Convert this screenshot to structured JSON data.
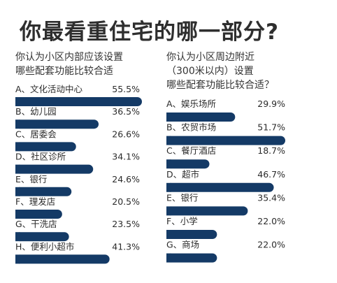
{
  "title": "你最看重住宅的哪一部分?",
  "chart_data": [
    {
      "type": "bar",
      "header": [
        "你认为小区内部应该设置",
        "哪些配套功能比较合适"
      ],
      "categories": [
        "A、文化活动中心",
        "B、幼儿园",
        "C、居委会",
        "D、社区诊所",
        "E、银行",
        "F、理发店",
        "G、干洗店",
        "H、便利小超市"
      ],
      "values": [
        55.5,
        36.5,
        26.6,
        34.1,
        24.6,
        20.5,
        23.5,
        41.3
      ],
      "value_labels": [
        "55.5%",
        "36.5%",
        "26.6%",
        "34.1%",
        "24.6%",
        "20.5%",
        "23.5%",
        "41.3%"
      ],
      "bar_color": "#143a66"
    },
    {
      "type": "bar",
      "header": [
        "你认为小区周边附近",
        "（300米以内）设置",
        "哪些配套功能比较合适？"
      ],
      "categories": [
        "A、娱乐场所",
        "B、农贸市场",
        "C、餐厅酒店",
        "D、超市",
        "E、银行",
        "F、小学",
        "G、商场"
      ],
      "values": [
        29.9,
        51.7,
        18.7,
        46.7,
        35.4,
        22.0,
        22.0
      ],
      "value_labels": [
        "29.9%",
        "51.7%",
        "18.7%",
        "46.7%",
        "35.4%",
        "22.0%",
        "22.0%"
      ],
      "bar_color": "#143a66"
    }
  ]
}
